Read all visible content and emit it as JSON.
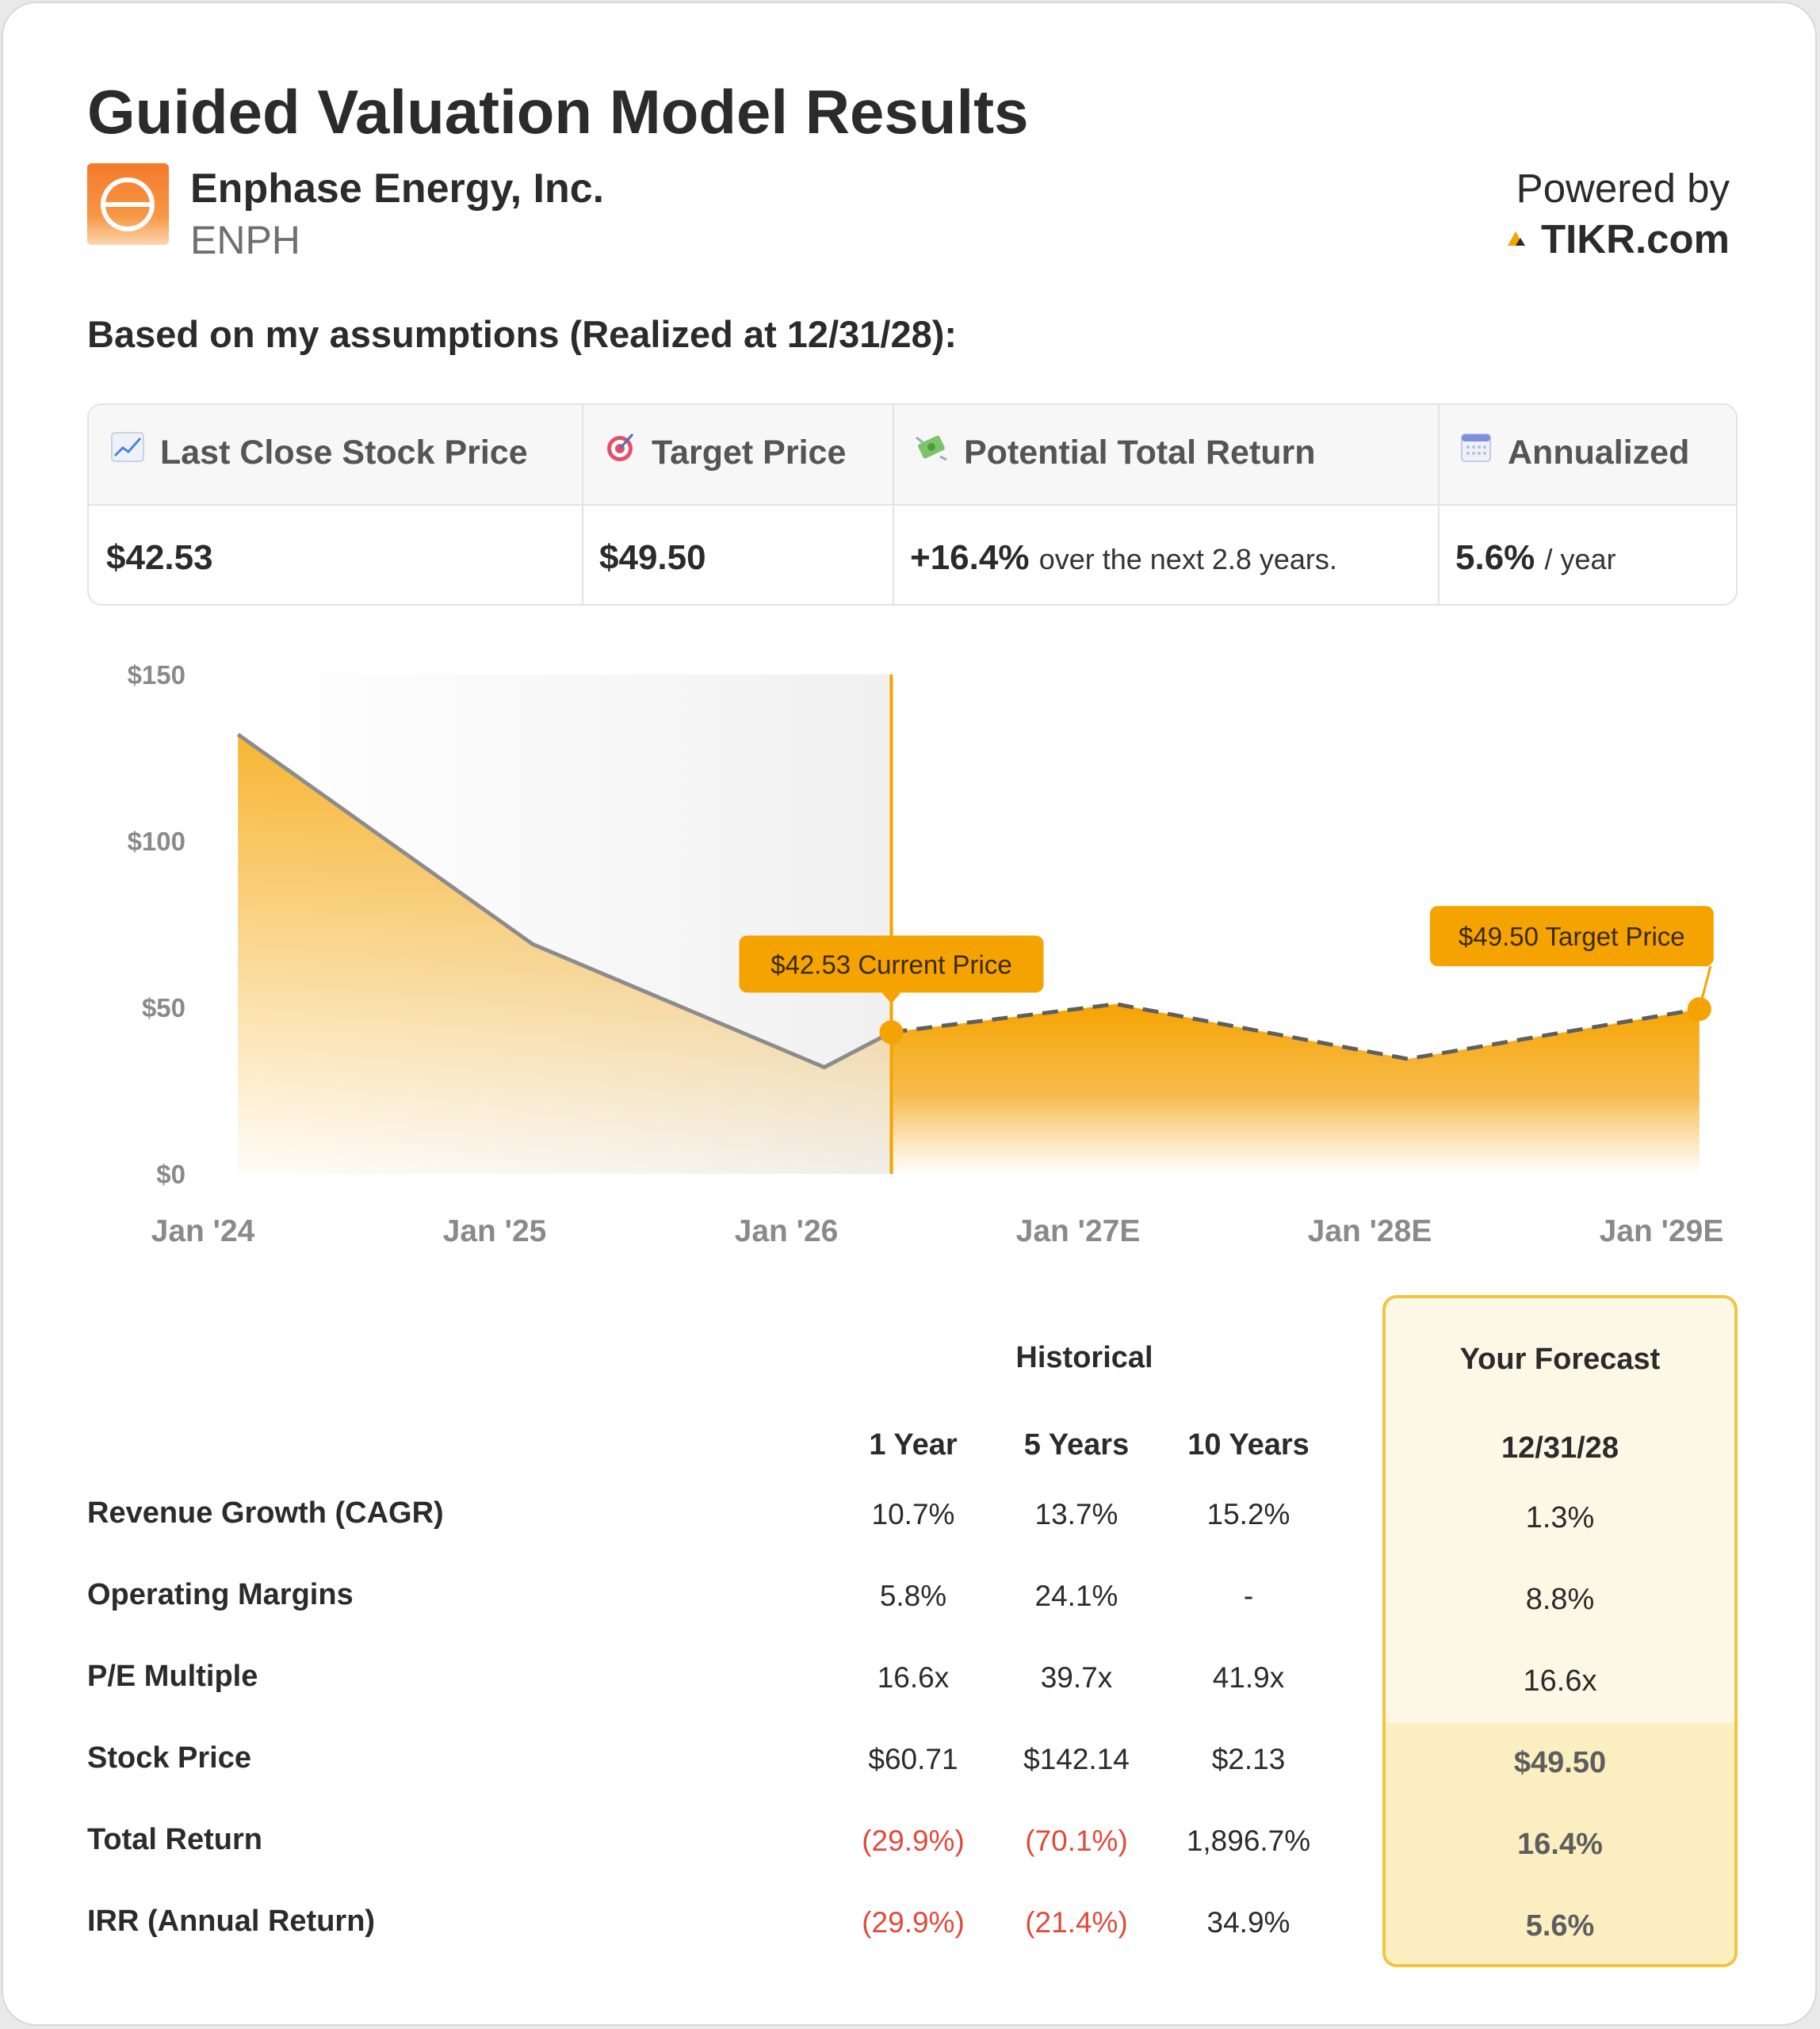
{
  "header": {
    "title": "Guided Valuation Model Results",
    "company_name": "Enphase Energy, Inc.",
    "ticker": "ENPH",
    "powered_by": "Powered by",
    "brand": "TIKR.com",
    "assumptions_text": "Based on my assumptions (Realized at 12/31/28):"
  },
  "summary": {
    "last_close_label": "Last Close Stock Price",
    "last_close_value": "$42.53",
    "target_label": "Target Price",
    "target_value": "$49.50",
    "return_label": "Potential Total Return",
    "return_value": "+16.4%",
    "return_suffix": "over the next 2.8 years.",
    "annualized_label": "Annualized",
    "annualized_value": "5.6%",
    "annualized_suffix": "/ year"
  },
  "chart_data": {
    "type": "area",
    "x_tick_labels": [
      "Jan '24",
      "Jan '25",
      "Jan '26",
      "Jan '27E",
      "Jan '28E",
      "Jan '29E"
    ],
    "y_tick_labels": [
      "$0",
      "$50",
      "$100",
      "$150"
    ],
    "ylim": [
      0,
      150
    ],
    "xlim": [
      2024.0,
      2029.0
    ],
    "series": [
      {
        "points": [
          {
            "x": 2024.12,
            "y": 132
          },
          {
            "x": 2025.13,
            "y": 69
          },
          {
            "x": 2026.13,
            "y": 32
          },
          {
            "x": 2026.36,
            "y": 42.53
          }
        ]
      },
      {
        "points": [
          {
            "x": 2026.36,
            "y": 42.53
          },
          {
            "x": 2027.13,
            "y": 51
          },
          {
            "x": 2028.13,
            "y": 34.5
          },
          {
            "x": 2029.13,
            "y": 49.5
          }
        ]
      }
    ],
    "annotations": [
      {
        "label": "$42.53 Current Price",
        "x": 2026.36,
        "y": 42.53
      },
      {
        "label": "$49.50 Target Price",
        "x": 2029.13,
        "y": 49.5
      }
    ],
    "colors": {
      "accent": "#f5a300",
      "historical_line": "#8c8c8c"
    }
  },
  "table": {
    "historical_heading": "Historical",
    "forecast_heading": "Your Forecast",
    "columns": [
      "1 Year",
      "5 Years",
      "10 Years"
    ],
    "forecast_date": "12/31/28",
    "rows": [
      {
        "label": "Revenue Growth (CAGR)",
        "values": [
          "10.7%",
          "13.7%",
          "15.2%"
        ],
        "forecast": "1.3%"
      },
      {
        "label": "Operating Margins",
        "values": [
          "5.8%",
          "24.1%",
          "-"
        ],
        "forecast": "8.8%"
      },
      {
        "label": "P/E Multiple",
        "values": [
          "16.6x",
          "39.7x",
          "41.9x"
        ],
        "forecast": "16.6x"
      },
      {
        "label": "Stock Price",
        "values": [
          "$60.71",
          "$142.14",
          "$2.13"
        ],
        "forecast": "$49.50"
      },
      {
        "label": "Total Return",
        "values": [
          "(29.9%)",
          "(70.1%)",
          "1,896.7%"
        ],
        "forecast": "16.4%"
      },
      {
        "label": "IRR (Annual Return)",
        "values": [
          "(29.9%)",
          "(21.4%)",
          "34.9%"
        ],
        "forecast": "5.6%"
      }
    ]
  }
}
